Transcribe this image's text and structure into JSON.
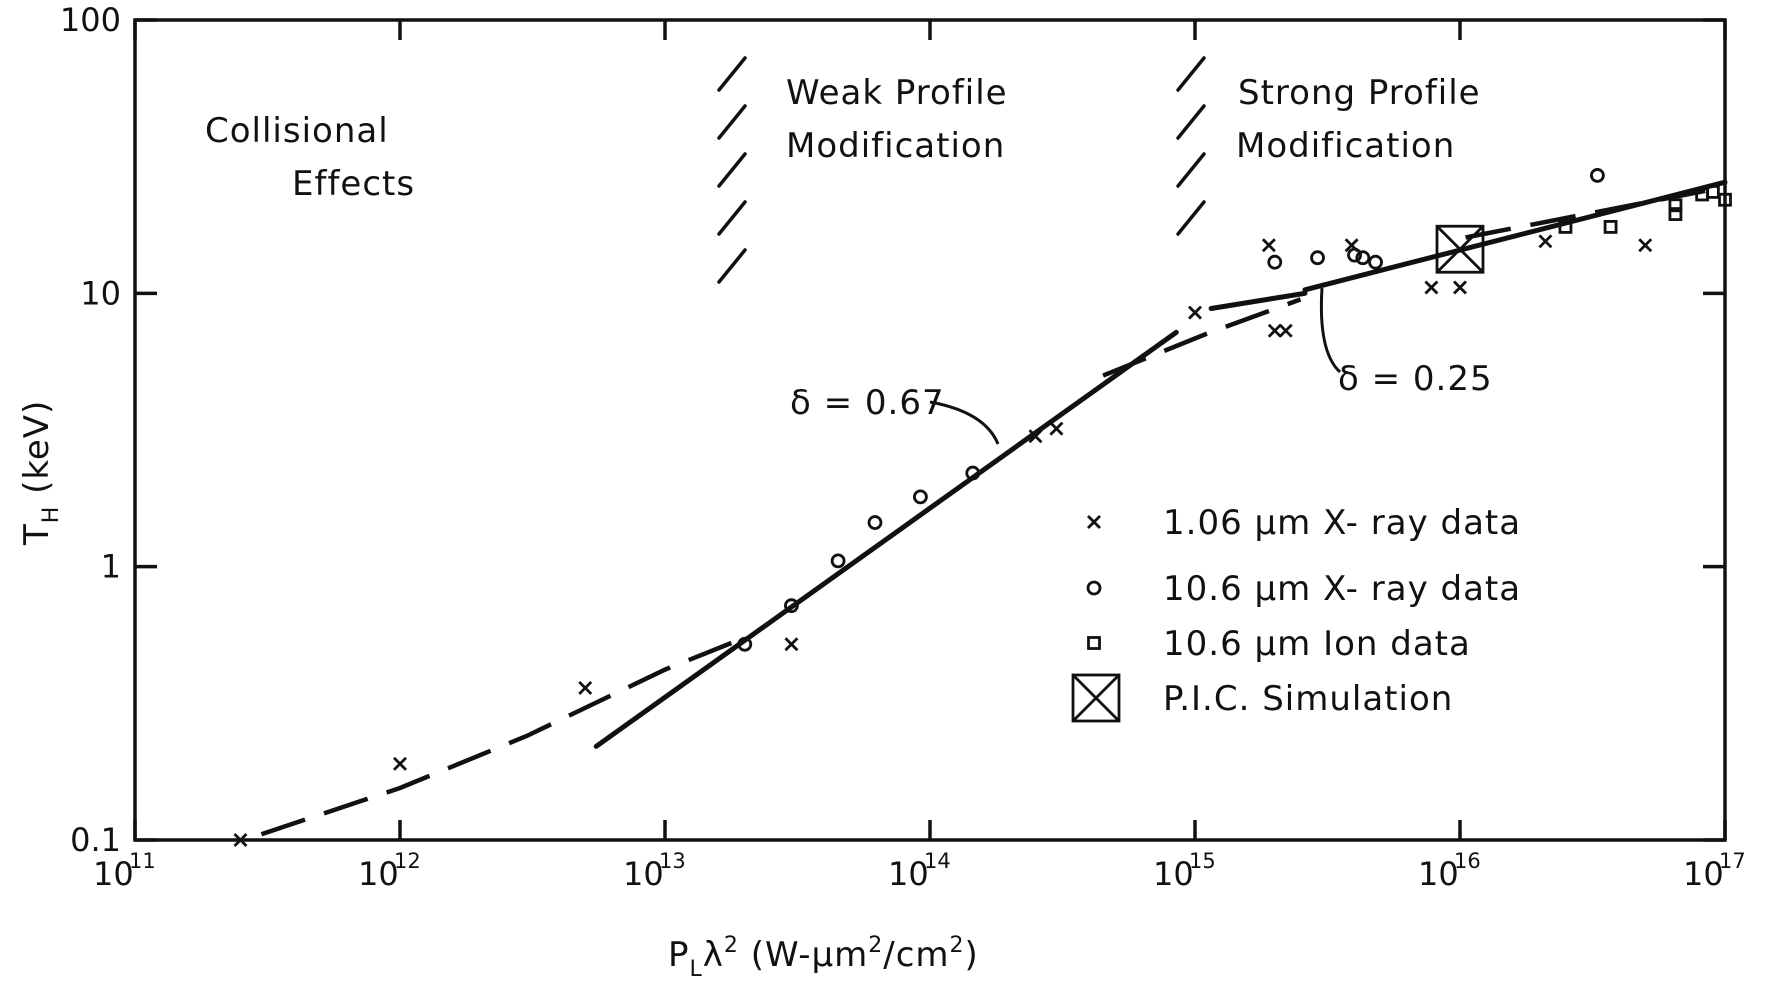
{
  "chart_data": {
    "type": "scatter",
    "title": "",
    "xlabel": "P_L λ² (W-μm²/cm²)",
    "ylabel": "T_H (keV)",
    "xlabel_parts": {
      "main": "P",
      "sub": "L",
      "lambda": "λ",
      "sup": "2",
      "units_a": "(W-",
      "mu": "μ",
      "units_b": "m",
      "units_sup1": "2",
      "units_c": "/cm",
      "units_sup2": "2",
      "units_d": ")"
    },
    "ylabel_parts": {
      "main": "T",
      "sub": "H",
      "units": "(keV)"
    },
    "x_scale": "log",
    "y_scale": "log",
    "xlim": [
      100000000000.0,
      1e+17
    ],
    "ylim": [
      0.1,
      100
    ],
    "grid": false,
    "legend_position": "right-center",
    "x_ticks": [
      {
        "value": 100000000000.0,
        "base": "10",
        "exp": "11"
      },
      {
        "value": 1000000000000.0,
        "base": "10",
        "exp": "12"
      },
      {
        "value": 10000000000000.0,
        "base": "10",
        "exp": "13"
      },
      {
        "value": 100000000000000.0,
        "base": "10",
        "exp": "14"
      },
      {
        "value": 1000000000000000.0,
        "base": "10",
        "exp": "15"
      },
      {
        "value": 1e+16,
        "base": "10",
        "exp": "16"
      },
      {
        "value": 1e+17,
        "base": "10",
        "exp": "17"
      }
    ],
    "y_ticks": [
      {
        "value": 0.1,
        "label": "0.1"
      },
      {
        "value": 1,
        "label": "1"
      },
      {
        "value": 10,
        "label": "10"
      },
      {
        "value": 100,
        "label": "100"
      }
    ],
    "series": [
      {
        "name": "1.06 μm X-ray data",
        "marker": "x",
        "points": [
          [
            250000000000.0,
            0.1
          ],
          [
            1000000000000.0,
            0.19
          ],
          [
            5000000000000.0,
            0.36
          ],
          [
            30000000000000.0,
            0.52
          ],
          [
            250000000000000.0,
            3.0
          ],
          [
            300000000000000.0,
            3.2
          ],
          [
            1000000000000000.0,
            8.5
          ],
          [
            1900000000000000.0,
            15.0
          ],
          [
            2000000000000000.0,
            7.3
          ],
          [
            2200000000000000.0,
            7.3
          ],
          [
            3900000000000000.0,
            15.0
          ],
          [
            7800000000000000.0,
            10.5
          ],
          [
            1e+16,
            10.5
          ],
          [
            2.1e+16,
            15.5
          ],
          [
            5e+16,
            15.0
          ]
        ]
      },
      {
        "name": "10.6 μm X-ray data",
        "marker": "o",
        "points": [
          [
            20000000000000.0,
            0.52
          ],
          [
            30000000000000.0,
            0.72
          ],
          [
            45000000000000.0,
            1.05
          ],
          [
            62000000000000.0,
            1.45
          ],
          [
            92000000000000.0,
            1.8
          ],
          [
            145000000000000.0,
            2.2
          ],
          [
            2000000000000000.0,
            13.0
          ],
          [
            2900000000000000.0,
            13.5
          ],
          [
            4000000000000000.0,
            13.8
          ],
          [
            4300000000000000.0,
            13.5
          ],
          [
            4800000000000000.0,
            13.0
          ],
          [
            3.3e+16,
            27.0
          ]
        ]
      },
      {
        "name": "10.6 μm Ion data",
        "marker": "square",
        "points": [
          [
            2.5e+16,
            17.5
          ],
          [
            3.7e+16,
            17.5
          ],
          [
            6.5e+16,
            19.5
          ],
          [
            6.5e+16,
            21.0
          ],
          [
            8.2e+16,
            23.0
          ],
          [
            9e+16,
            23.5
          ],
          [
            1e+17,
            22.0
          ]
        ]
      },
      {
        "name": "P.I.C. Simulation",
        "marker": "boxed-x",
        "points": [
          [
            1e+16,
            14.5
          ]
        ]
      }
    ],
    "fit_lines": [
      {
        "style": "dashed",
        "points": [
          [
            300000000000.0,
            0.105
          ],
          [
            1000000000000.0,
            0.155
          ],
          [
            3000000000000.0,
            0.24
          ],
          [
            10000000000000.0,
            0.42
          ],
          [
            20000000000000.0,
            0.55
          ]
        ]
      },
      {
        "style": "solid",
        "points": [
          [
            5500000000000.0,
            0.22
          ],
          [
            850000000000000.0,
            7.2
          ]
        ]
      },
      {
        "style": "dashed",
        "points": [
          [
            450000000000000.0,
            5.0
          ],
          [
            1100000000000000.0,
            7.1
          ],
          [
            2500000000000000.0,
            9.5
          ]
        ]
      },
      {
        "style": "solid",
        "points": [
          [
            1150000000000000.0,
            8.8
          ],
          [
            2600000000000000.0,
            10.0
          ]
        ]
      },
      {
        "style": "solid",
        "points": [
          [
            2600000000000000.0,
            10.3
          ],
          [
            1e+17,
            25.5
          ]
        ]
      },
      {
        "style": "dashed",
        "points": [
          [
            1.05e+16,
            16.0
          ],
          [
            9e+16,
            24.0
          ]
        ]
      }
    ],
    "annotations": [
      {
        "id": "collisional",
        "lines": [
          "Collisional",
          "Effects"
        ]
      },
      {
        "id": "weak",
        "lines": [
          "Weak  Profile",
          "Modification"
        ]
      },
      {
        "id": "strong",
        "lines": [
          "Strong  Profile",
          "Modification"
        ]
      },
      {
        "id": "delta067",
        "text": "δ = 0.67"
      },
      {
        "id": "delta025",
        "text": "δ = 0.25"
      }
    ],
    "legend": [
      {
        "marker": "x",
        "parts": [
          "1.06 ",
          "μ",
          "m  X- ray  data"
        ]
      },
      {
        "marker": "o",
        "parts": [
          "10.6 ",
          "μ",
          "m  X- ray  data"
        ]
      },
      {
        "marker": "square",
        "parts": [
          "10.6 ",
          "μ",
          "m  Ion  data"
        ]
      },
      {
        "marker": "boxed-x",
        "parts": [
          "P.I.C.  Simulation"
        ]
      }
    ]
  }
}
